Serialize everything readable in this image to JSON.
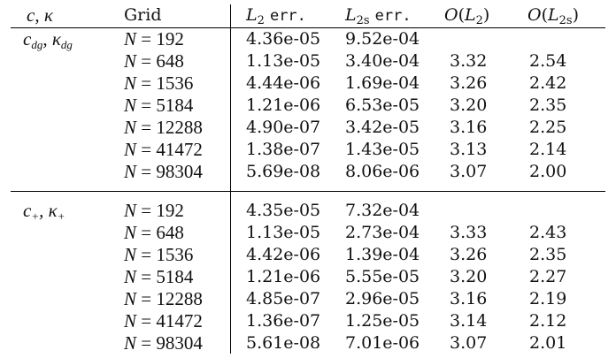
{
  "table": {
    "headers": {
      "param": "c, κ",
      "grid": "Grid",
      "l2": "L2 err.",
      "l2s": "L2s err.",
      "ol2": "O(L2)",
      "ol2s": "O(L2s)"
    },
    "groups": [
      {
        "label": "c_dg, κ_dg",
        "rows": [
          {
            "grid": "N = 192",
            "l2": "4.36e-05",
            "l2s": "9.52e-04",
            "ol2": "",
            "ol2s": ""
          },
          {
            "grid": "N = 648",
            "l2": "1.13e-05",
            "l2s": "3.40e-04",
            "ol2": "3.32",
            "ol2s": "2.54"
          },
          {
            "grid": "N = 1536",
            "l2": "4.44e-06",
            "l2s": "1.69e-04",
            "ol2": "3.26",
            "ol2s": "2.42"
          },
          {
            "grid": "N = 5184",
            "l2": "1.21e-06",
            "l2s": "6.53e-05",
            "ol2": "3.20",
            "ol2s": "2.35"
          },
          {
            "grid": "N = 12288",
            "l2": "4.90e-07",
            "l2s": "3.42e-05",
            "ol2": "3.16",
            "ol2s": "2.25"
          },
          {
            "grid": "N = 41472",
            "l2": "1.38e-07",
            "l2s": "1.43e-05",
            "ol2": "3.13",
            "ol2s": "2.14"
          },
          {
            "grid": "N = 98304",
            "l2": "5.69e-08",
            "l2s": "8.06e-06",
            "ol2": "3.07",
            "ol2s": "2.00"
          }
        ]
      },
      {
        "label": "c_+, κ_+",
        "rows": [
          {
            "grid": "N = 192",
            "l2": "4.35e-05",
            "l2s": "7.32e-04",
            "ol2": "",
            "ol2s": ""
          },
          {
            "grid": "N = 648",
            "l2": "1.13e-05",
            "l2s": "2.73e-04",
            "ol2": "3.33",
            "ol2s": "2.43"
          },
          {
            "grid": "N = 1536",
            "l2": "4.42e-06",
            "l2s": "1.39e-04",
            "ol2": "3.26",
            "ol2s": "2.35"
          },
          {
            "grid": "N = 5184",
            "l2": "1.21e-06",
            "l2s": "5.55e-05",
            "ol2": "3.20",
            "ol2s": "2.27"
          },
          {
            "grid": "N = 12288",
            "l2": "4.85e-07",
            "l2s": "2.96e-05",
            "ol2": "3.16",
            "ol2s": "2.19"
          },
          {
            "grid": "N = 41472",
            "l2": "1.36e-07",
            "l2s": "1.25e-05",
            "ol2": "3.14",
            "ol2s": "2.12"
          },
          {
            "grid": "N = 98304",
            "l2": "5.61e-08",
            "l2s": "7.01e-06",
            "ol2": "3.07",
            "ol2s": "2.01"
          }
        ]
      }
    ]
  }
}
